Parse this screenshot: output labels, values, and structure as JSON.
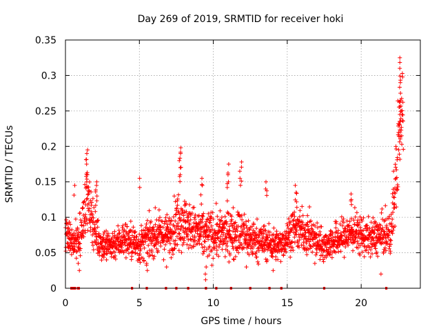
{
  "chart_data": {
    "type": "scatter",
    "title": "Day 269 of 2019, SRMTID for receiver hoki",
    "xlabel": "GPS time / hours",
    "ylabel": "SRMTID / TECUs",
    "xlim": [
      0,
      24
    ],
    "ylim": [
      0,
      0.35
    ],
    "xticks": [
      0,
      5,
      10,
      15,
      20
    ],
    "xtick_labels": [
      "0",
      "5",
      "10",
      "15",
      "20"
    ],
    "yticks": [
      0,
      0.05,
      0.1,
      0.15,
      0.2,
      0.25,
      0.3,
      0.35
    ],
    "ytick_labels": [
      "0",
      "0.05",
      "0.1",
      "0.15",
      "0.2",
      "0.25",
      "0.3",
      "0.35"
    ],
    "grid": true,
    "marker": "+",
    "color": "#ff0000",
    "profile": [
      {
        "t": 0.0,
        "m": 0.075,
        "s": 0.018
      },
      {
        "t": 0.5,
        "m": 0.065,
        "s": 0.015
      },
      {
        "t": 1.0,
        "m": 0.07,
        "s": 0.02
      },
      {
        "t": 1.4,
        "m": 0.125,
        "s": 0.03
      },
      {
        "t": 1.8,
        "m": 0.1,
        "s": 0.025
      },
      {
        "t": 2.3,
        "m": 0.065,
        "s": 0.018
      },
      {
        "t": 3.0,
        "m": 0.06,
        "s": 0.015
      },
      {
        "t": 4.0,
        "m": 0.07,
        "s": 0.018
      },
      {
        "t": 5.0,
        "m": 0.06,
        "s": 0.018
      },
      {
        "t": 6.0,
        "m": 0.075,
        "s": 0.02
      },
      {
        "t": 7.0,
        "m": 0.075,
        "s": 0.02
      },
      {
        "t": 7.7,
        "m": 0.1,
        "s": 0.03
      },
      {
        "t": 8.5,
        "m": 0.085,
        "s": 0.022
      },
      {
        "t": 9.3,
        "m": 0.075,
        "s": 0.025
      },
      {
        "t": 10.5,
        "m": 0.075,
        "s": 0.022
      },
      {
        "t": 11.5,
        "m": 0.08,
        "s": 0.025
      },
      {
        "t": 12.5,
        "m": 0.07,
        "s": 0.02
      },
      {
        "t": 13.5,
        "m": 0.065,
        "s": 0.018
      },
      {
        "t": 14.5,
        "m": 0.06,
        "s": 0.015
      },
      {
        "t": 15.5,
        "m": 0.085,
        "s": 0.02
      },
      {
        "t": 16.5,
        "m": 0.075,
        "s": 0.02
      },
      {
        "t": 17.5,
        "m": 0.06,
        "s": 0.015
      },
      {
        "t": 18.5,
        "m": 0.07,
        "s": 0.018
      },
      {
        "t": 19.5,
        "m": 0.08,
        "s": 0.02
      },
      {
        "t": 20.5,
        "m": 0.07,
        "s": 0.018
      },
      {
        "t": 21.5,
        "m": 0.075,
        "s": 0.02
      },
      {
        "t": 22.0,
        "m": 0.075,
        "s": 0.02
      },
      {
        "t": 22.3,
        "m": 0.14,
        "s": 0.04
      },
      {
        "t": 22.5,
        "m": 0.2,
        "s": 0.05
      },
      {
        "t": 22.75,
        "m": 0.26,
        "s": 0.05
      }
    ],
    "spikes": [
      {
        "t": 0.6,
        "values": [
          0.145
        ]
      },
      {
        "t": 1.45,
        "values": [
          0.195,
          0.19,
          0.175,
          0.16,
          0.15
        ]
      },
      {
        "t": 2.1,
        "values": [
          0.15,
          0.145,
          0.13
        ]
      },
      {
        "t": 5.05,
        "values": [
          0.155
        ]
      },
      {
        "t": 7.75,
        "values": [
          0.198,
          0.19,
          0.18,
          0.17,
          0.16
        ]
      },
      {
        "t": 9.2,
        "values": [
          0.155,
          0.145
        ]
      },
      {
        "t": 11.0,
        "values": [
          0.175,
          0.16,
          0.15
        ]
      },
      {
        "t": 11.85,
        "values": [
          0.178,
          0.165,
          0.155
        ]
      },
      {
        "t": 13.6,
        "values": [
          0.15,
          0.14
        ]
      },
      {
        "t": 15.6,
        "values": [
          0.145,
          0.135
        ]
      },
      {
        "t": 19.3,
        "values": [
          0.133,
          0.125
        ]
      },
      {
        "t": 22.65,
        "values": [
          0.325,
          0.31,
          0.29,
          0.275,
          0.265,
          0.245,
          0.235,
          0.22
        ]
      }
    ],
    "lows": [
      {
        "t": 0.9,
        "values": [
          0.025,
          0.035
        ]
      },
      {
        "t": 2.8,
        "values": [
          0.04
        ]
      },
      {
        "t": 5.5,
        "values": [
          0.025,
          0.035
        ]
      },
      {
        "t": 6.8,
        "values": [
          0.03
        ]
      },
      {
        "t": 9.5,
        "values": [
          0.012,
          0.02,
          0.03
        ]
      },
      {
        "t": 12.2,
        "values": [
          0.03
        ]
      },
      {
        "t": 14.0,
        "values": [
          0.025
        ]
      },
      {
        "t": 16.9,
        "values": [
          0.035
        ]
      },
      {
        "t": 21.3,
        "values": [
          0.02
        ]
      }
    ],
    "zero_points": [
      0.4,
      0.45,
      0.5,
      0.55,
      0.6,
      0.65,
      0.85,
      0.9,
      4.5,
      5.5,
      6.8,
      7.5,
      8.3,
      9.5,
      10.2,
      11.2,
      12.5,
      13.8,
      14.6,
      17.5,
      21.7
    ]
  }
}
